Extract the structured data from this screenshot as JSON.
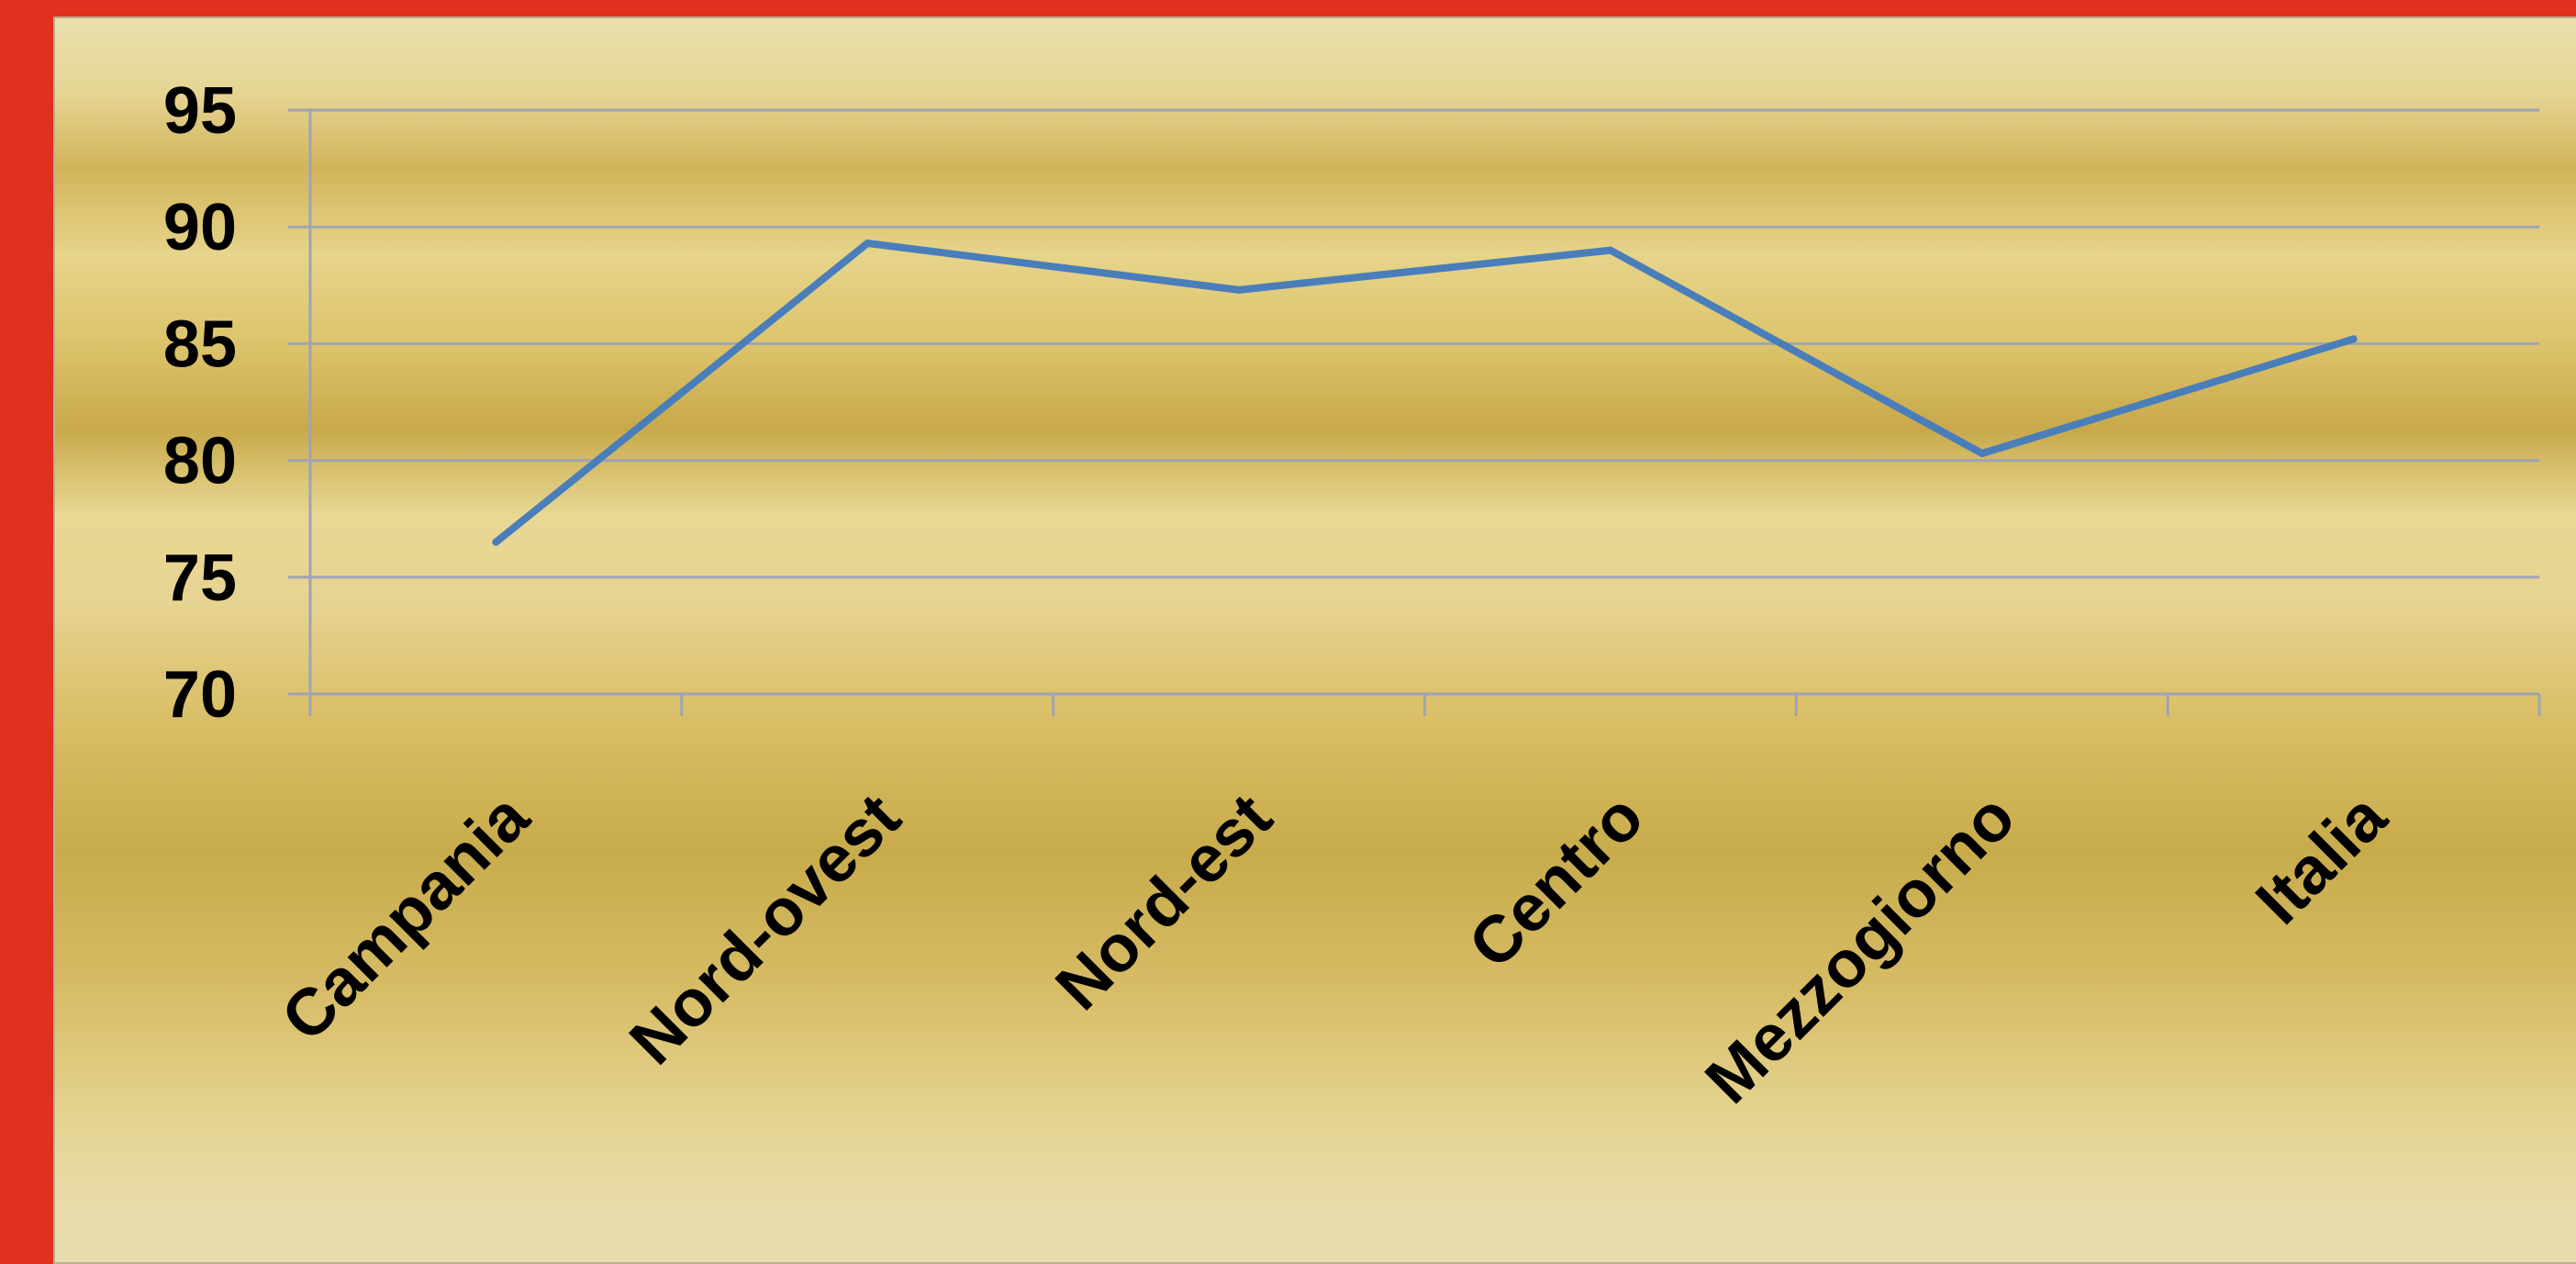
{
  "colors": {
    "frame": "#e0301e",
    "line": "#4a7ebb",
    "grid": "#9fa3b4",
    "text": "#000000"
  },
  "chart_data": {
    "type": "line",
    "title": "",
    "xlabel": "",
    "ylabel": "",
    "categories": [
      "Campania",
      "Nord-ovest",
      "Nord-est",
      "Centro",
      "Mezzogiorno",
      "Italia"
    ],
    "series": [
      {
        "values": [
          76.5,
          89.3,
          87.3,
          89.0,
          80.3,
          85.2
        ]
      }
    ],
    "ylim": [
      70,
      95
    ],
    "yticks": [
      70,
      75,
      80,
      85,
      90,
      95
    ],
    "grid": true,
    "legend": "none"
  }
}
